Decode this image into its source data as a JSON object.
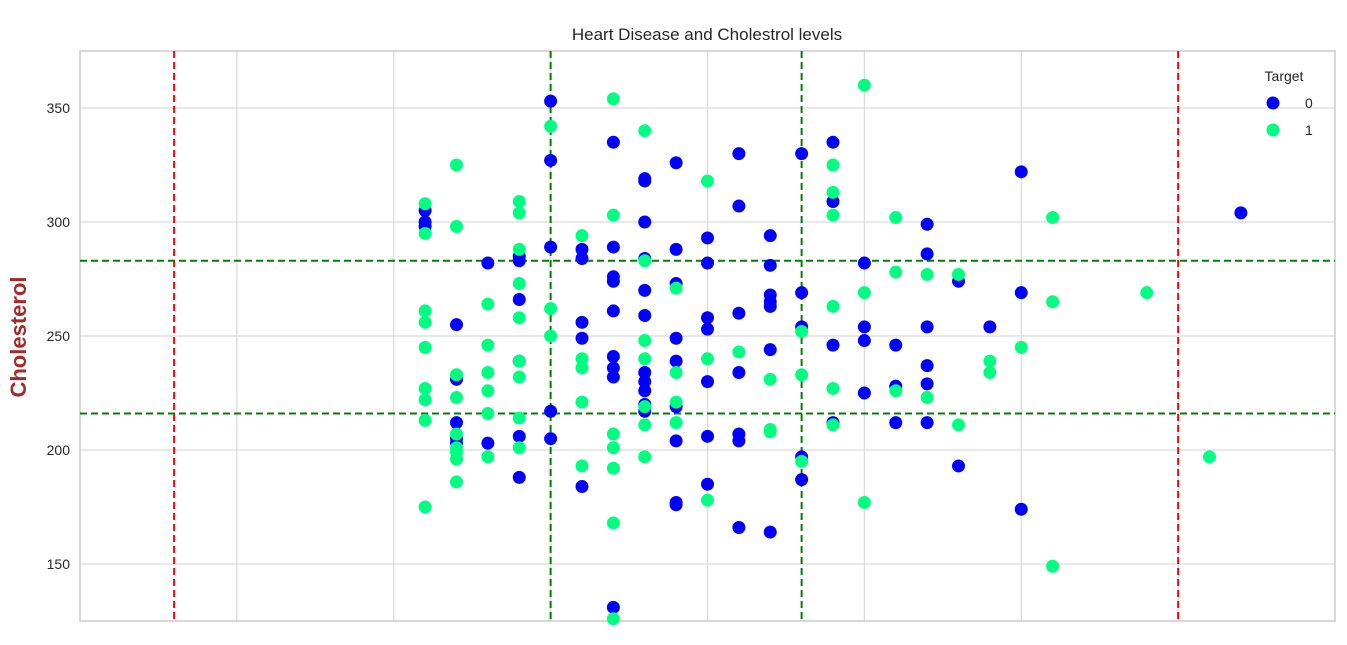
{
  "chart_data": {
    "type": "scatter",
    "title": "Heart Disease and Cholestrol levels",
    "xlabel": "",
    "ylabel": "Cholesterol",
    "xlim": [
      26,
      66
    ],
    "ylim": [
      125,
      375
    ],
    "grid": true,
    "x_gridlines": [
      31,
      36,
      41,
      46,
      51,
      56,
      61
    ],
    "y_ticks": [
      150,
      200,
      250,
      300,
      350
    ],
    "legend": {
      "title": "Target",
      "position": "top-right"
    },
    "reference_lines": {
      "vertical_red": [
        29,
        61
      ],
      "vertical_green": [
        41,
        49
      ],
      "horizontal_green": [
        216,
        283
      ]
    },
    "series": [
      {
        "name": "0",
        "color": "#0000ff",
        "points": [
          [
            37,
            305
          ],
          [
            37,
            300
          ],
          [
            37,
            298
          ],
          [
            38,
            255
          ],
          [
            38,
            231
          ],
          [
            38,
            212
          ],
          [
            38,
            205
          ],
          [
            38,
            203
          ],
          [
            39,
            282
          ],
          [
            39,
            203
          ],
          [
            40,
            285
          ],
          [
            40,
            283
          ],
          [
            40,
            266
          ],
          [
            40,
            239
          ],
          [
            40,
            206
          ],
          [
            40,
            188
          ],
          [
            41,
            353
          ],
          [
            41,
            327
          ],
          [
            41,
            289
          ],
          [
            41,
            217
          ],
          [
            41,
            205
          ],
          [
            42,
            288
          ],
          [
            42,
            284
          ],
          [
            42,
            256
          ],
          [
            42,
            249
          ],
          [
            42,
            184
          ],
          [
            43,
            335
          ],
          [
            43,
            289
          ],
          [
            43,
            276
          ],
          [
            43,
            274
          ],
          [
            43,
            261
          ],
          [
            43,
            241
          ],
          [
            43,
            236
          ],
          [
            43,
            232
          ],
          [
            43,
            131
          ],
          [
            44,
            319
          ],
          [
            44,
            318
          ],
          [
            44,
            300
          ],
          [
            44,
            284
          ],
          [
            44,
            270
          ],
          [
            44,
            259
          ],
          [
            44,
            234
          ],
          [
            44,
            230
          ],
          [
            44,
            226
          ],
          [
            44,
            220
          ],
          [
            44,
            217
          ],
          [
            45,
            326
          ],
          [
            45,
            288
          ],
          [
            45,
            273
          ],
          [
            45,
            249
          ],
          [
            45,
            239
          ],
          [
            45,
            219
          ],
          [
            45,
            204
          ],
          [
            45,
            177
          ],
          [
            45,
            176
          ],
          [
            46,
            293
          ],
          [
            46,
            282
          ],
          [
            46,
            258
          ],
          [
            46,
            253
          ],
          [
            46,
            230
          ],
          [
            46,
            206
          ],
          [
            46,
            185
          ],
          [
            47,
            330
          ],
          [
            47,
            307
          ],
          [
            47,
            260
          ],
          [
            47,
            234
          ],
          [
            47,
            207
          ],
          [
            47,
            204
          ],
          [
            47,
            166
          ],
          [
            48,
            294
          ],
          [
            48,
            281
          ],
          [
            48,
            268
          ],
          [
            48,
            265
          ],
          [
            48,
            263
          ],
          [
            48,
            244
          ],
          [
            48,
            164
          ],
          [
            49,
            330
          ],
          [
            49,
            269
          ],
          [
            49,
            254
          ],
          [
            49,
            197
          ],
          [
            49,
            187
          ],
          [
            50,
            335
          ],
          [
            50,
            309
          ],
          [
            50,
            246
          ],
          [
            50,
            212
          ],
          [
            51,
            282
          ],
          [
            51,
            254
          ],
          [
            51,
            248
          ],
          [
            51,
            225
          ],
          [
            52,
            246
          ],
          [
            52,
            228
          ],
          [
            52,
            212
          ],
          [
            53,
            299
          ],
          [
            53,
            286
          ],
          [
            53,
            254
          ],
          [
            53,
            237
          ],
          [
            53,
            229
          ],
          [
            53,
            212
          ],
          [
            54,
            274
          ],
          [
            54,
            193
          ],
          [
            55,
            254
          ],
          [
            56,
            322
          ],
          [
            56,
            269
          ],
          [
            56,
            174
          ],
          [
            63,
            304
          ]
        ]
      },
      {
        "name": "1",
        "color": "#00ff80",
        "points": [
          [
            37,
            308
          ],
          [
            37,
            295
          ],
          [
            37,
            261
          ],
          [
            37,
            256
          ],
          [
            37,
            245
          ],
          [
            37,
            227
          ],
          [
            37,
            222
          ],
          [
            37,
            213
          ],
          [
            37,
            175
          ],
          [
            38,
            325
          ],
          [
            38,
            298
          ],
          [
            38,
            233
          ],
          [
            38,
            223
          ],
          [
            38,
            207
          ],
          [
            38,
            201
          ],
          [
            38,
            199
          ],
          [
            38,
            196
          ],
          [
            38,
            186
          ],
          [
            39,
            264
          ],
          [
            39,
            246
          ],
          [
            39,
            234
          ],
          [
            39,
            226
          ],
          [
            39,
            216
          ],
          [
            39,
            197
          ],
          [
            40,
            309
          ],
          [
            40,
            304
          ],
          [
            40,
            288
          ],
          [
            40,
            273
          ],
          [
            40,
            258
          ],
          [
            40,
            239
          ],
          [
            40,
            232
          ],
          [
            40,
            214
          ],
          [
            40,
            201
          ],
          [
            41,
            342
          ],
          [
            41,
            262
          ],
          [
            41,
            250
          ],
          [
            42,
            294
          ],
          [
            42,
            240
          ],
          [
            42,
            236
          ],
          [
            42,
            221
          ],
          [
            42,
            193
          ],
          [
            43,
            354
          ],
          [
            43,
            303
          ],
          [
            43,
            207
          ],
          [
            43,
            201
          ],
          [
            43,
            192
          ],
          [
            43,
            168
          ],
          [
            43,
            126
          ],
          [
            44,
            340
          ],
          [
            44,
            283
          ],
          [
            44,
            248
          ],
          [
            44,
            240
          ],
          [
            44,
            219
          ],
          [
            44,
            211
          ],
          [
            44,
            197
          ],
          [
            45,
            271
          ],
          [
            45,
            234
          ],
          [
            45,
            221
          ],
          [
            45,
            212
          ],
          [
            46,
            318
          ],
          [
            46,
            240
          ],
          [
            46,
            178
          ],
          [
            47,
            243
          ],
          [
            48,
            231
          ],
          [
            48,
            209
          ],
          [
            48,
            208
          ],
          [
            49,
            252
          ],
          [
            49,
            233
          ],
          [
            49,
            195
          ],
          [
            50,
            325
          ],
          [
            50,
            313
          ],
          [
            50,
            303
          ],
          [
            50,
            263
          ],
          [
            50,
            227
          ],
          [
            50,
            211
          ],
          [
            51,
            360
          ],
          [
            51,
            269
          ],
          [
            51,
            177
          ],
          [
            52,
            302
          ],
          [
            52,
            278
          ],
          [
            52,
            226
          ],
          [
            53,
            277
          ],
          [
            53,
            223
          ],
          [
            54,
            277
          ],
          [
            54,
            211
          ],
          [
            55,
            239
          ],
          [
            55,
            234
          ],
          [
            56,
            245
          ],
          [
            57,
            302
          ],
          [
            57,
            265
          ],
          [
            57,
            149
          ],
          [
            60,
            269
          ],
          [
            62,
            197
          ]
        ]
      }
    ]
  }
}
